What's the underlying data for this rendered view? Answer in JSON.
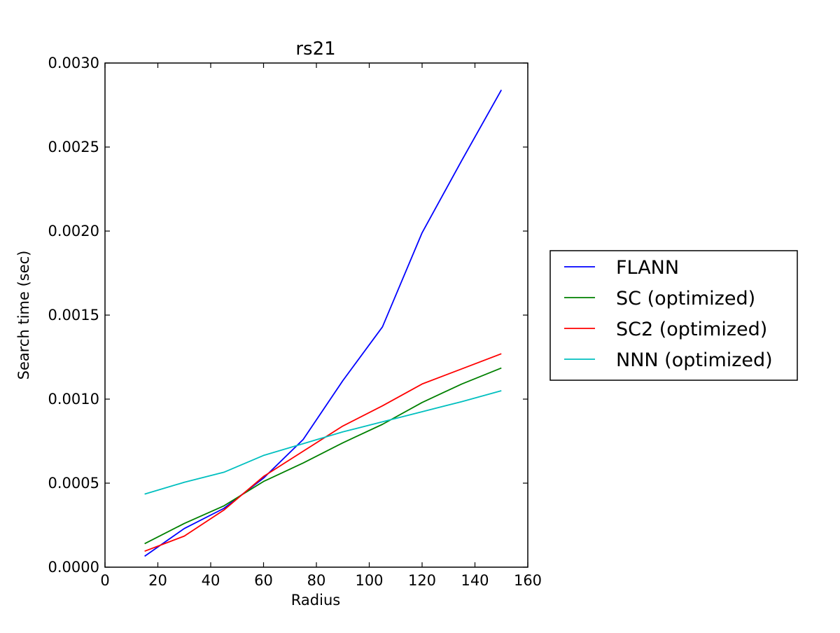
{
  "chart_data": {
    "type": "line",
    "title": "rs21",
    "xlabel": "Radius",
    "ylabel": "Search time (sec)",
    "xlim": [
      0,
      160
    ],
    "ylim": [
      0,
      0.003
    ],
    "xticks": [
      0,
      20,
      40,
      60,
      80,
      100,
      120,
      140,
      160
    ],
    "xtick_labels": [
      "0",
      "20",
      "40",
      "60",
      "80",
      "100",
      "120",
      "140",
      "160"
    ],
    "yticks": [
      0,
      0.0005,
      0.001,
      0.0015,
      0.002,
      0.0025,
      0.003
    ],
    "ytick_labels": [
      "0.0000",
      "0.0005",
      "0.0010",
      "0.0015",
      "0.0020",
      "0.0025",
      "0.0030"
    ],
    "grid": false,
    "legend_position": "outside-right",
    "x": [
      15,
      30,
      45,
      60,
      75,
      90,
      105,
      120,
      135,
      150
    ],
    "series": [
      {
        "name": "FLANN",
        "color": "#0000ff",
        "values": [
          6.5e-05,
          0.00023,
          0.00035,
          0.00053,
          0.00076,
          0.00111,
          0.00143,
          0.00199,
          0.00242,
          0.00284
        ]
      },
      {
        "name": "SC (optimized)",
        "color": "#008000",
        "values": [
          0.00014,
          0.00026,
          0.000365,
          0.00051,
          0.00062,
          0.00074,
          0.00085,
          0.00098,
          0.00109,
          0.001185
        ]
      },
      {
        "name": "SC2 (optimized)",
        "color": "#ff0000",
        "values": [
          9.5e-05,
          0.000185,
          0.00034,
          0.00054,
          0.00069,
          0.00084,
          0.00096,
          0.00109,
          0.00118,
          0.00127
        ]
      },
      {
        "name": "NNN (optimized)",
        "color": "#00bfbf",
        "values": [
          0.000435,
          0.000505,
          0.000565,
          0.000665,
          0.000735,
          0.000805,
          0.000865,
          0.000925,
          0.000985,
          0.00105
        ]
      }
    ]
  }
}
